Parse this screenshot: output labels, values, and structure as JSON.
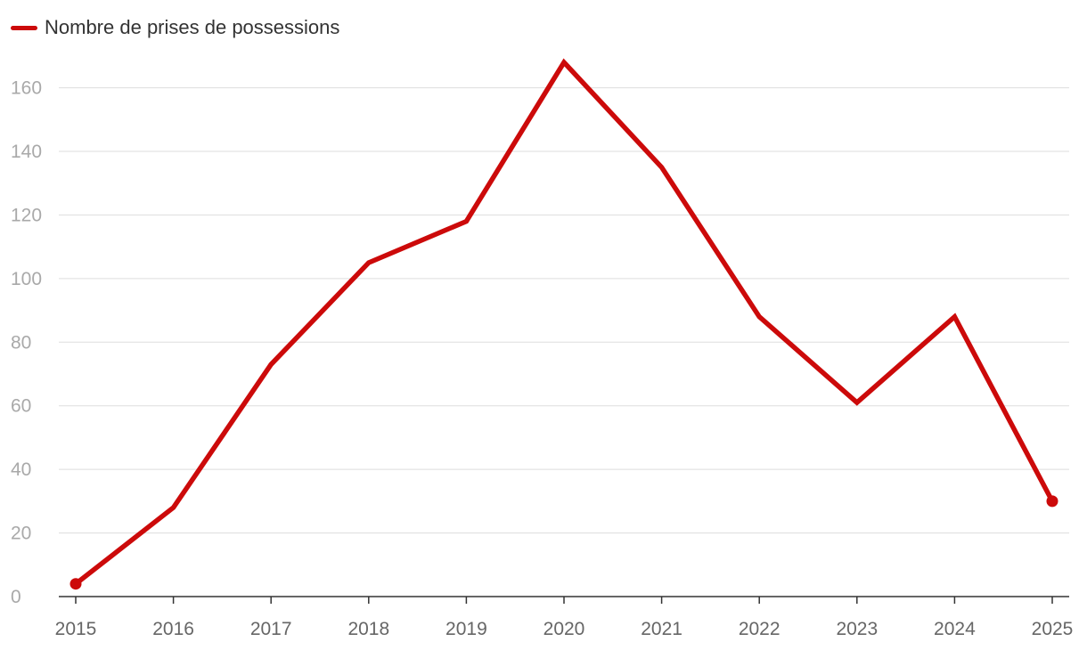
{
  "colors": {
    "series": "#cc0a0a",
    "grid": "#dddddd",
    "axis": "#333333",
    "y_tick_text": "#a9a9a9",
    "x_tick_text": "#666666",
    "legend_text": "#333333"
  },
  "chart_data": {
    "type": "line",
    "title": "",
    "xlabel": "",
    "ylabel": "",
    "x": [
      2015,
      2016,
      2017,
      2018,
      2019,
      2020,
      2021,
      2022,
      2023,
      2024,
      2025
    ],
    "x_tick_labels": [
      "2015",
      "2016",
      "2017",
      "2018",
      "2019",
      "2020",
      "2021",
      "2022",
      "2023",
      "2024",
      "2025"
    ],
    "y_ticks": [
      0,
      20,
      40,
      60,
      80,
      100,
      120,
      140,
      160
    ],
    "y_tick_labels": [
      "0",
      "20",
      "40",
      "60",
      "80",
      "100",
      "120",
      "140",
      "160"
    ],
    "ylim": [
      0,
      168
    ],
    "grid": true,
    "legend_position": "top-left",
    "series": [
      {
        "name": "Nombre de prises de possessions",
        "values": [
          4,
          28,
          73,
          105,
          118,
          168,
          135,
          88,
          61,
          88,
          30
        ],
        "endpoint_markers": true
      }
    ]
  }
}
